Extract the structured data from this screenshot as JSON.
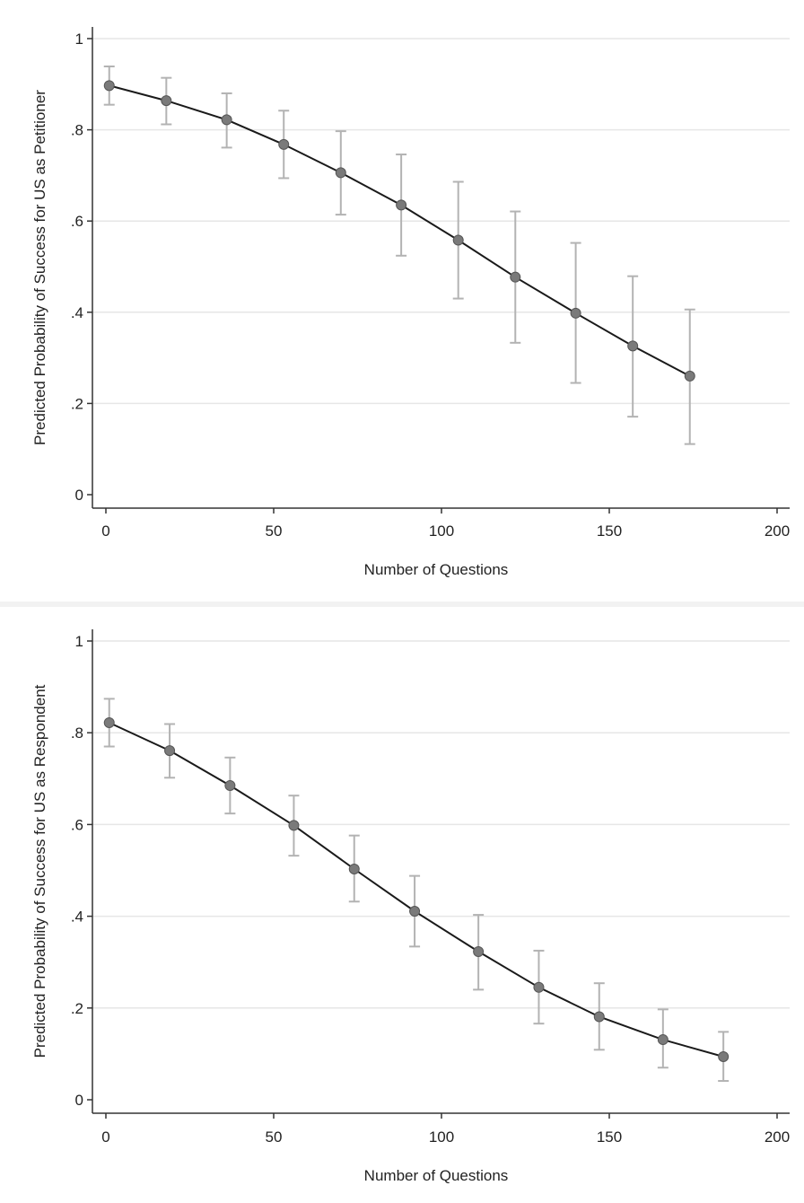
{
  "chart_data": [
    {
      "type": "line",
      "title": "",
      "xlabel": "Number of Questions",
      "ylabel": "Predicted Probability of Success for US as Petitioner",
      "xlim": [
        0,
        200
      ],
      "ylim": [
        0,
        1
      ],
      "xticks": [
        0,
        50,
        100,
        150,
        200
      ],
      "xtick_labels": [
        "0",
        "50",
        "100",
        "150",
        "200"
      ],
      "yticks": [
        0,
        0.2,
        0.4,
        0.6,
        0.8,
        1
      ],
      "ytick_labels": [
        "0",
        ".2",
        ".4",
        ".6",
        ".8",
        "1"
      ],
      "grid": true,
      "error_bars": true,
      "series": [
        {
          "x": [
            1,
            18,
            36,
            53,
            70,
            88,
            105,
            122,
            140,
            157,
            174
          ],
          "y": [
            0.897,
            0.864,
            0.822,
            0.768,
            0.706,
            0.635,
            0.558,
            0.477,
            0.398,
            0.326,
            0.26
          ],
          "lower": [
            0.855,
            0.812,
            0.761,
            0.694,
            0.614,
            0.524,
            0.43,
            0.333,
            0.245,
            0.171,
            0.111
          ],
          "upper": [
            0.939,
            0.914,
            0.88,
            0.842,
            0.797,
            0.746,
            0.686,
            0.621,
            0.552,
            0.479,
            0.406
          ]
        }
      ]
    },
    {
      "type": "line",
      "title": "",
      "xlabel": "Number of Questions",
      "ylabel": "Predicted Probability of Success for US as Respondent",
      "xlim": [
        0,
        200
      ],
      "ylim": [
        0,
        1
      ],
      "xticks": [
        0,
        50,
        100,
        150,
        200
      ],
      "xtick_labels": [
        "0",
        "50",
        "100",
        "150",
        "200"
      ],
      "yticks": [
        0,
        0.2,
        0.4,
        0.6,
        0.8,
        1
      ],
      "ytick_labels": [
        "0",
        ".2",
        ".4",
        ".6",
        ".8",
        "1"
      ],
      "grid": true,
      "error_bars": true,
      "series": [
        {
          "x": [
            1,
            19,
            37,
            56,
            74,
            92,
            111,
            129,
            147,
            166,
            184
          ],
          "y": [
            0.822,
            0.761,
            0.685,
            0.598,
            0.503,
            0.411,
            0.323,
            0.245,
            0.181,
            0.131,
            0.094
          ],
          "lower": [
            0.77,
            0.702,
            0.624,
            0.532,
            0.432,
            0.334,
            0.24,
            0.166,
            0.109,
            0.07,
            0.041
          ],
          "upper": [
            0.874,
            0.819,
            0.746,
            0.663,
            0.576,
            0.488,
            0.403,
            0.325,
            0.254,
            0.197,
            0.148
          ]
        }
      ]
    }
  ]
}
